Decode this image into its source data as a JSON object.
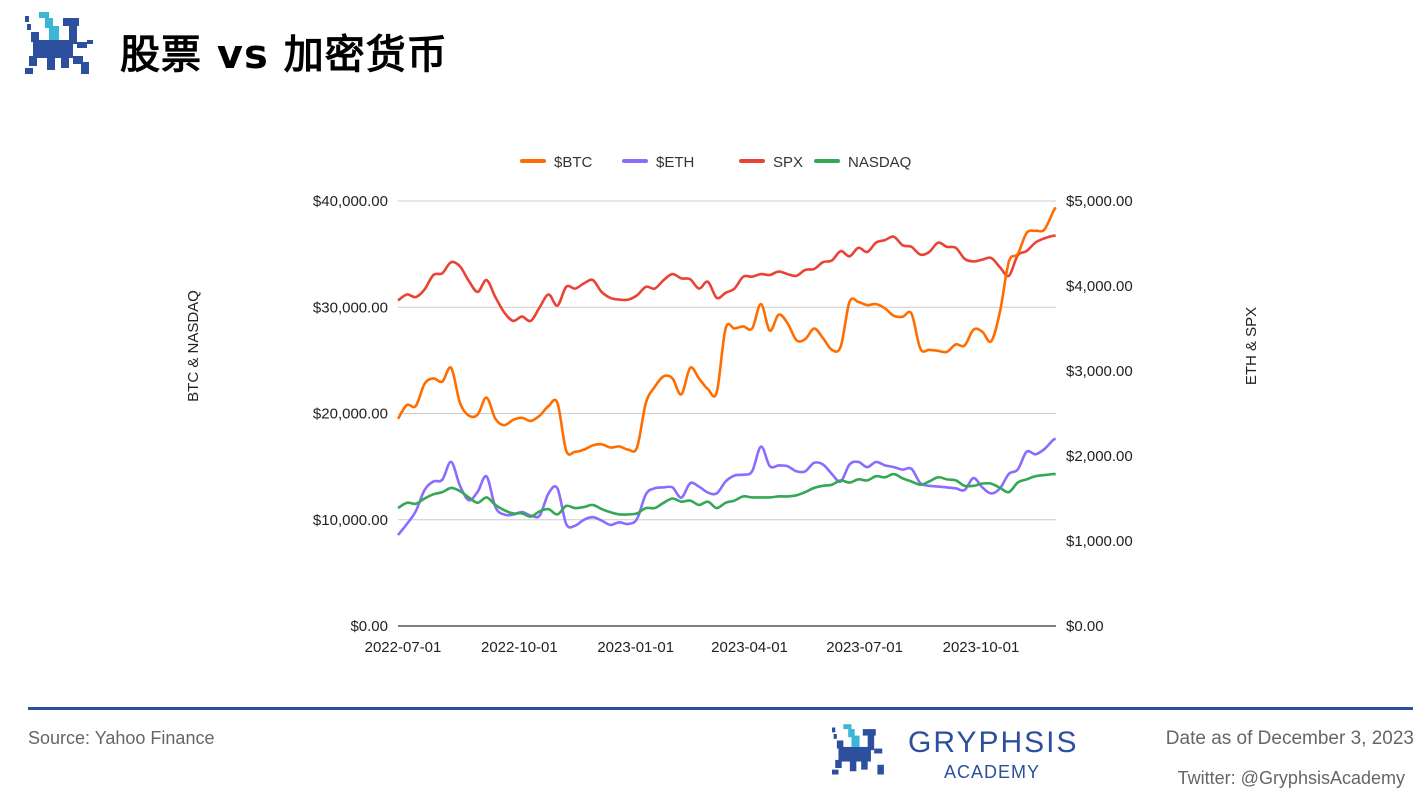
{
  "header": {
    "title": "股票 vs 加密货币",
    "logo_icon": "gryphon-pixel-logo"
  },
  "footer": {
    "source": "Source: Yahoo Finance",
    "date": "Date as of December 3, 2023",
    "twitter": "Twitter: @GryphsisAcademy",
    "brand_name": "GRYPHSIS",
    "brand_sub": "ACADEMY",
    "brand_color": "#2c4f9e"
  },
  "chart_data": {
    "type": "line",
    "legend_position": "top",
    "grid": true,
    "left_axis": {
      "title": "BTC & NASDAQ",
      "range": [
        0,
        40000
      ],
      "ticks": [
        "$0.00",
        "$10,000.00",
        "$20,000.00",
        "$30,000.00",
        "$40,000.00"
      ]
    },
    "right_axis": {
      "title": "ETH & SPX",
      "range": [
        0,
        5000
      ],
      "ticks": [
        "$0.00",
        "$1,000.00",
        "$2,000.00",
        "$3,000.00",
        "$4,000.00",
        "$5,000.00"
      ]
    },
    "x_ticks": [
      "2022-07-01",
      "2022-10-01",
      "2023-01-01",
      "2023-04-01",
      "2023-07-01",
      "2023-10-01"
    ],
    "x": [
      "2022-07-01",
      "2022-07-08",
      "2022-07-15",
      "2022-07-22",
      "2022-07-29",
      "2022-08-05",
      "2022-08-12",
      "2022-08-19",
      "2022-08-26",
      "2022-09-02",
      "2022-09-09",
      "2022-09-16",
      "2022-09-23",
      "2022-09-30",
      "2022-10-07",
      "2022-10-14",
      "2022-10-21",
      "2022-10-28",
      "2022-11-04",
      "2022-11-11",
      "2022-11-18",
      "2022-11-25",
      "2022-12-02",
      "2022-12-09",
      "2022-12-16",
      "2022-12-23",
      "2022-12-30",
      "2023-01-06",
      "2023-01-13",
      "2023-01-20",
      "2023-01-27",
      "2023-02-03",
      "2023-02-10",
      "2023-02-17",
      "2023-02-24",
      "2023-03-03",
      "2023-03-10",
      "2023-03-17",
      "2023-03-24",
      "2023-03-31",
      "2023-04-07",
      "2023-04-14",
      "2023-04-21",
      "2023-04-28",
      "2023-05-05",
      "2023-05-12",
      "2023-05-19",
      "2023-05-26",
      "2023-06-02",
      "2023-06-09",
      "2023-06-16",
      "2023-06-23",
      "2023-06-30",
      "2023-07-07",
      "2023-07-14",
      "2023-07-21",
      "2023-07-28",
      "2023-08-04",
      "2023-08-11",
      "2023-08-18",
      "2023-08-25",
      "2023-09-01",
      "2023-09-08",
      "2023-09-15",
      "2023-09-22",
      "2023-09-29",
      "2023-10-06",
      "2023-10-13",
      "2023-10-20",
      "2023-10-27",
      "2023-11-03",
      "2023-11-10",
      "2023-11-17",
      "2023-11-24",
      "2023-12-01",
      "2023-12-03"
    ],
    "series": [
      {
        "name": "$BTC",
        "axis": "left",
        "color": "#ff6d01",
        "values": [
          19500,
          20800,
          20700,
          22800,
          23300,
          23000,
          24300,
          21000,
          19800,
          19900,
          21500,
          19500,
          18900,
          19400,
          19600,
          19300,
          19800,
          20700,
          21000,
          16500,
          16400,
          16600,
          17000,
          17100,
          16800,
          16900,
          16600,
          16800,
          21000,
          22500,
          23500,
          23300,
          21800,
          24300,
          23300,
          22300,
          22000,
          28000,
          28000,
          28200,
          28000,
          30300,
          27800,
          29300,
          28500,
          26900,
          27000,
          28000,
          27100,
          26000,
          26300,
          30500,
          30500,
          30200,
          30300,
          29900,
          29200,
          29100,
          29400,
          26100,
          26000,
          25900,
          25800,
          26500,
          26400,
          27900,
          27700,
          26800,
          29600,
          34300,
          35000,
          37000,
          37200,
          37300,
          39000,
          39400
        ]
      },
      {
        "name": "$ETH",
        "axis": "right",
        "color": "#8c6bff",
        "values": [
          1070,
          1200,
          1350,
          1600,
          1700,
          1720,
          1930,
          1650,
          1480,
          1580,
          1760,
          1400,
          1310,
          1310,
          1340,
          1300,
          1300,
          1560,
          1620,
          1200,
          1180,
          1250,
          1280,
          1240,
          1190,
          1220,
          1200,
          1260,
          1550,
          1620,
          1630,
          1630,
          1510,
          1680,
          1640,
          1570,
          1560,
          1700,
          1770,
          1780,
          1820,
          2110,
          1880,
          1890,
          1880,
          1820,
          1820,
          1920,
          1900,
          1790,
          1700,
          1900,
          1930,
          1870,
          1930,
          1890,
          1870,
          1840,
          1850,
          1680,
          1650,
          1640,
          1630,
          1620,
          1600,
          1740,
          1630,
          1560,
          1620,
          1790,
          1840,
          2050,
          2020,
          2080,
          2190,
          2200
        ]
      },
      {
        "name": "SPX",
        "axis": "right",
        "color": "#ea4335",
        "values": [
          3830,
          3900,
          3870,
          3960,
          4130,
          4150,
          4280,
          4230,
          4060,
          3930,
          4070,
          3870,
          3690,
          3590,
          3640,
          3590,
          3750,
          3900,
          3770,
          3990,
          3970,
          4030,
          4070,
          3930,
          3860,
          3840,
          3840,
          3890,
          3990,
          3970,
          4070,
          4140,
          4090,
          4080,
          3970,
          4050,
          3860,
          3920,
          3970,
          4110,
          4110,
          4140,
          4130,
          4170,
          4140,
          4120,
          4190,
          4200,
          4280,
          4300,
          4410,
          4350,
          4450,
          4400,
          4510,
          4540,
          4580,
          4480,
          4460,
          4370,
          4400,
          4510,
          4460,
          4450,
          4320,
          4290,
          4310,
          4330,
          4220,
          4120,
          4360,
          4410,
          4510,
          4560,
          4590,
          4590
        ]
      },
      {
        "name": "NASDAQ",
        "axis": "left",
        "color": "#34a853",
        "values": [
          11100,
          11600,
          11500,
          12000,
          12400,
          12600,
          13000,
          12700,
          12100,
          11600,
          12100,
          11400,
          10900,
          10600,
          10600,
          10300,
          10800,
          11000,
          10500,
          11300,
          11100,
          11200,
          11400,
          11000,
          10700,
          10500,
          10500,
          10600,
          11100,
          11100,
          11600,
          12000,
          11700,
          11800,
          11400,
          11700,
          11100,
          11600,
          11800,
          12200,
          12100,
          12100,
          12100,
          12200,
          12200,
          12300,
          12600,
          13000,
          13200,
          13300,
          13700,
          13500,
          13800,
          13700,
          14100,
          14000,
          14300,
          13900,
          13600,
          13300,
          13600,
          14000,
          13800,
          13700,
          13200,
          13200,
          13400,
          13400,
          13000,
          12600,
          13500,
          13800,
          14100,
          14200,
          14300,
          14300
        ]
      }
    ]
  }
}
